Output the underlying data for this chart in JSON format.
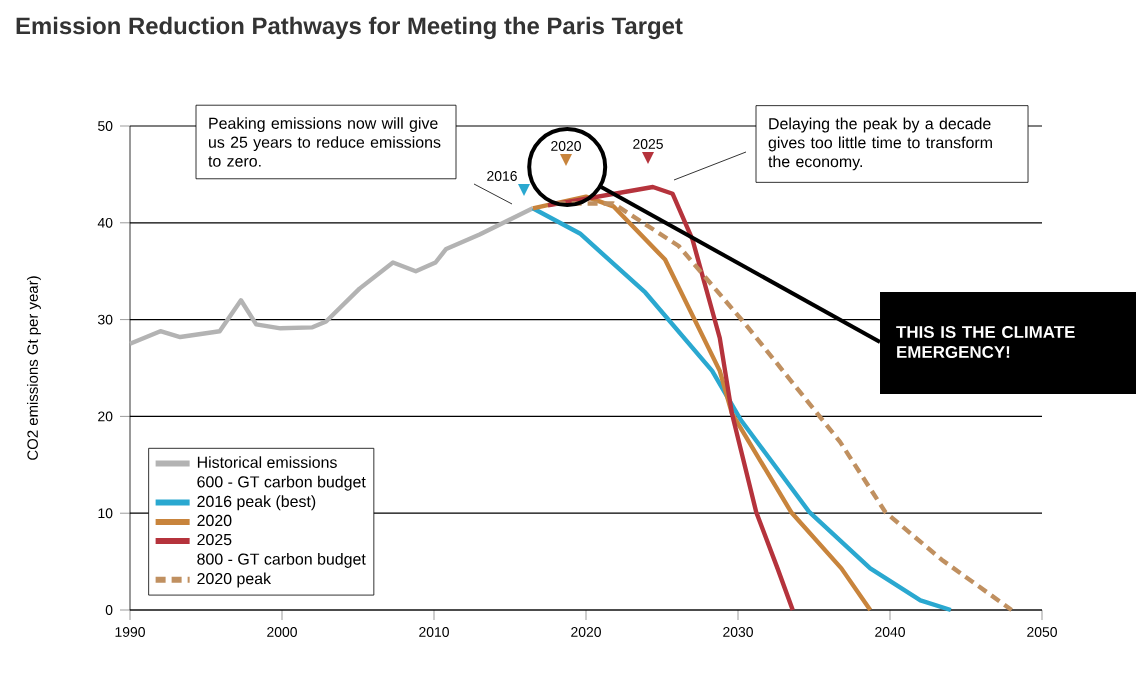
{
  "chart_data": {
    "type": "line",
    "title": "Emission Reduction Pathways for Meeting the Paris Target",
    "ylabel": "CO2 emissions Gt per year)",
    "xlim": [
      1990,
      2050
    ],
    "xticks": [
      1990,
      2000,
      2010,
      2020,
      2030,
      2040,
      2050
    ],
    "ylim": [
      0,
      50
    ],
    "yticks": [
      0,
      10,
      20,
      30,
      40,
      50
    ],
    "grid": "y",
    "legend": "bottom left",
    "marker": "none",
    "series": [
      {
        "name": "Historical emissions",
        "color": "#b3b3b3",
        "line_style": "solid",
        "x": [
          1990,
          1992,
          1993.3,
          1995.9,
          1997.3,
          1998.3,
          1999.9,
          2002,
          2002.9,
          2005.1,
          2007.3,
          2008.8,
          2010.1,
          2010.8,
          2013,
          2015.2,
          2016.5
        ],
        "values": [
          27.5,
          28.8,
          28.2,
          28.8,
          32.0,
          29.5,
          29.1,
          29.2,
          29.8,
          33.2,
          35.9,
          35.0,
          35.9,
          37.3,
          38.8,
          40.5,
          41.5
        ]
      },
      {
        "name": "2016 peak (best)",
        "color": "#2aa8d0",
        "line_style": "solid",
        "x": [
          2016.5,
          2019.6,
          2023.9,
          2028.3,
          2030.2,
          2034.7,
          2038.7,
          2042,
          2044
        ],
        "values": [
          41.5,
          38.9,
          32.8,
          24.7,
          19.6,
          10.1,
          4.3,
          1,
          0
        ]
      },
      {
        "name": "2020",
        "color": "#c8843c",
        "line_style": "solid",
        "x": [
          2016.5,
          2020,
          2021.8,
          2025.2,
          2028.8,
          2029.6,
          2033.5,
          2036.8,
          2038.7
        ],
        "values": [
          41.5,
          42.7,
          41.7,
          36.2,
          24.7,
          20.3,
          10.1,
          4.3,
          0
        ]
      },
      {
        "name": "2025",
        "color": "#b5333c",
        "line_style": "solid",
        "x": [
          2017.5,
          2024.4,
          2025.7,
          2027,
          2028.8,
          2029.6,
          2031.2,
          2032.6,
          2033.6
        ],
        "values": [
          41.8,
          43.7,
          43.0,
          38.3,
          28.1,
          20.3,
          10.1,
          4.3,
          0
        ]
      },
      {
        "name": "2020 peak",
        "color": "#c09060",
        "line_style": "dashed",
        "x": [
          2018,
          2021.8,
          2026.1,
          2030.5,
          2036.7,
          2039.7,
          2043.4,
          2048
        ],
        "values": [
          42,
          42,
          37.6,
          29.5,
          17.4,
          10.1,
          5.2,
          0
        ]
      }
    ],
    "annotations": [
      "Peaking emissions now will give us 25 years to reduce emissions to zero.",
      "Delaying the peak by a decade gives too little time to transform the economy.",
      {
        "text": "THIS IS THE CLIMATE EMERGENCY!",
        "x": 2021,
        "y": 43.7
      },
      "600 - GT carbon budget",
      "800 - GT carbon budget",
      "2016",
      "2020",
      "2025"
    ]
  }
}
